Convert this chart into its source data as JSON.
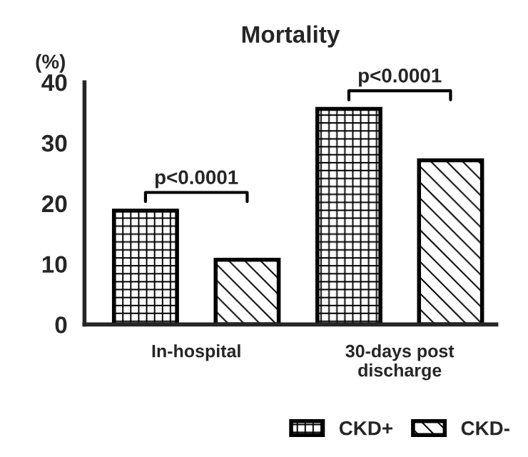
{
  "chart_data": {
    "type": "bar",
    "title": "Mortality",
    "ylabel": "(%)",
    "categories": [
      "In-hospital",
      "30-days post\ndischarge"
    ],
    "series": [
      {
        "name": "CKD+",
        "color": "#000000",
        "values": [
          18.8,
          35.6
        ]
      },
      {
        "name": "CKD-",
        "color": "#000000",
        "values": [
          10.7,
          27.1
        ]
      }
    ],
    "ylim": [
      0,
      40
    ],
    "yticks": [
      0,
      10,
      20,
      30,
      40
    ],
    "grid": false,
    "legend": "bottom right",
    "annotations": [
      "p<0.0001",
      "p<0.0001"
    ]
  }
}
